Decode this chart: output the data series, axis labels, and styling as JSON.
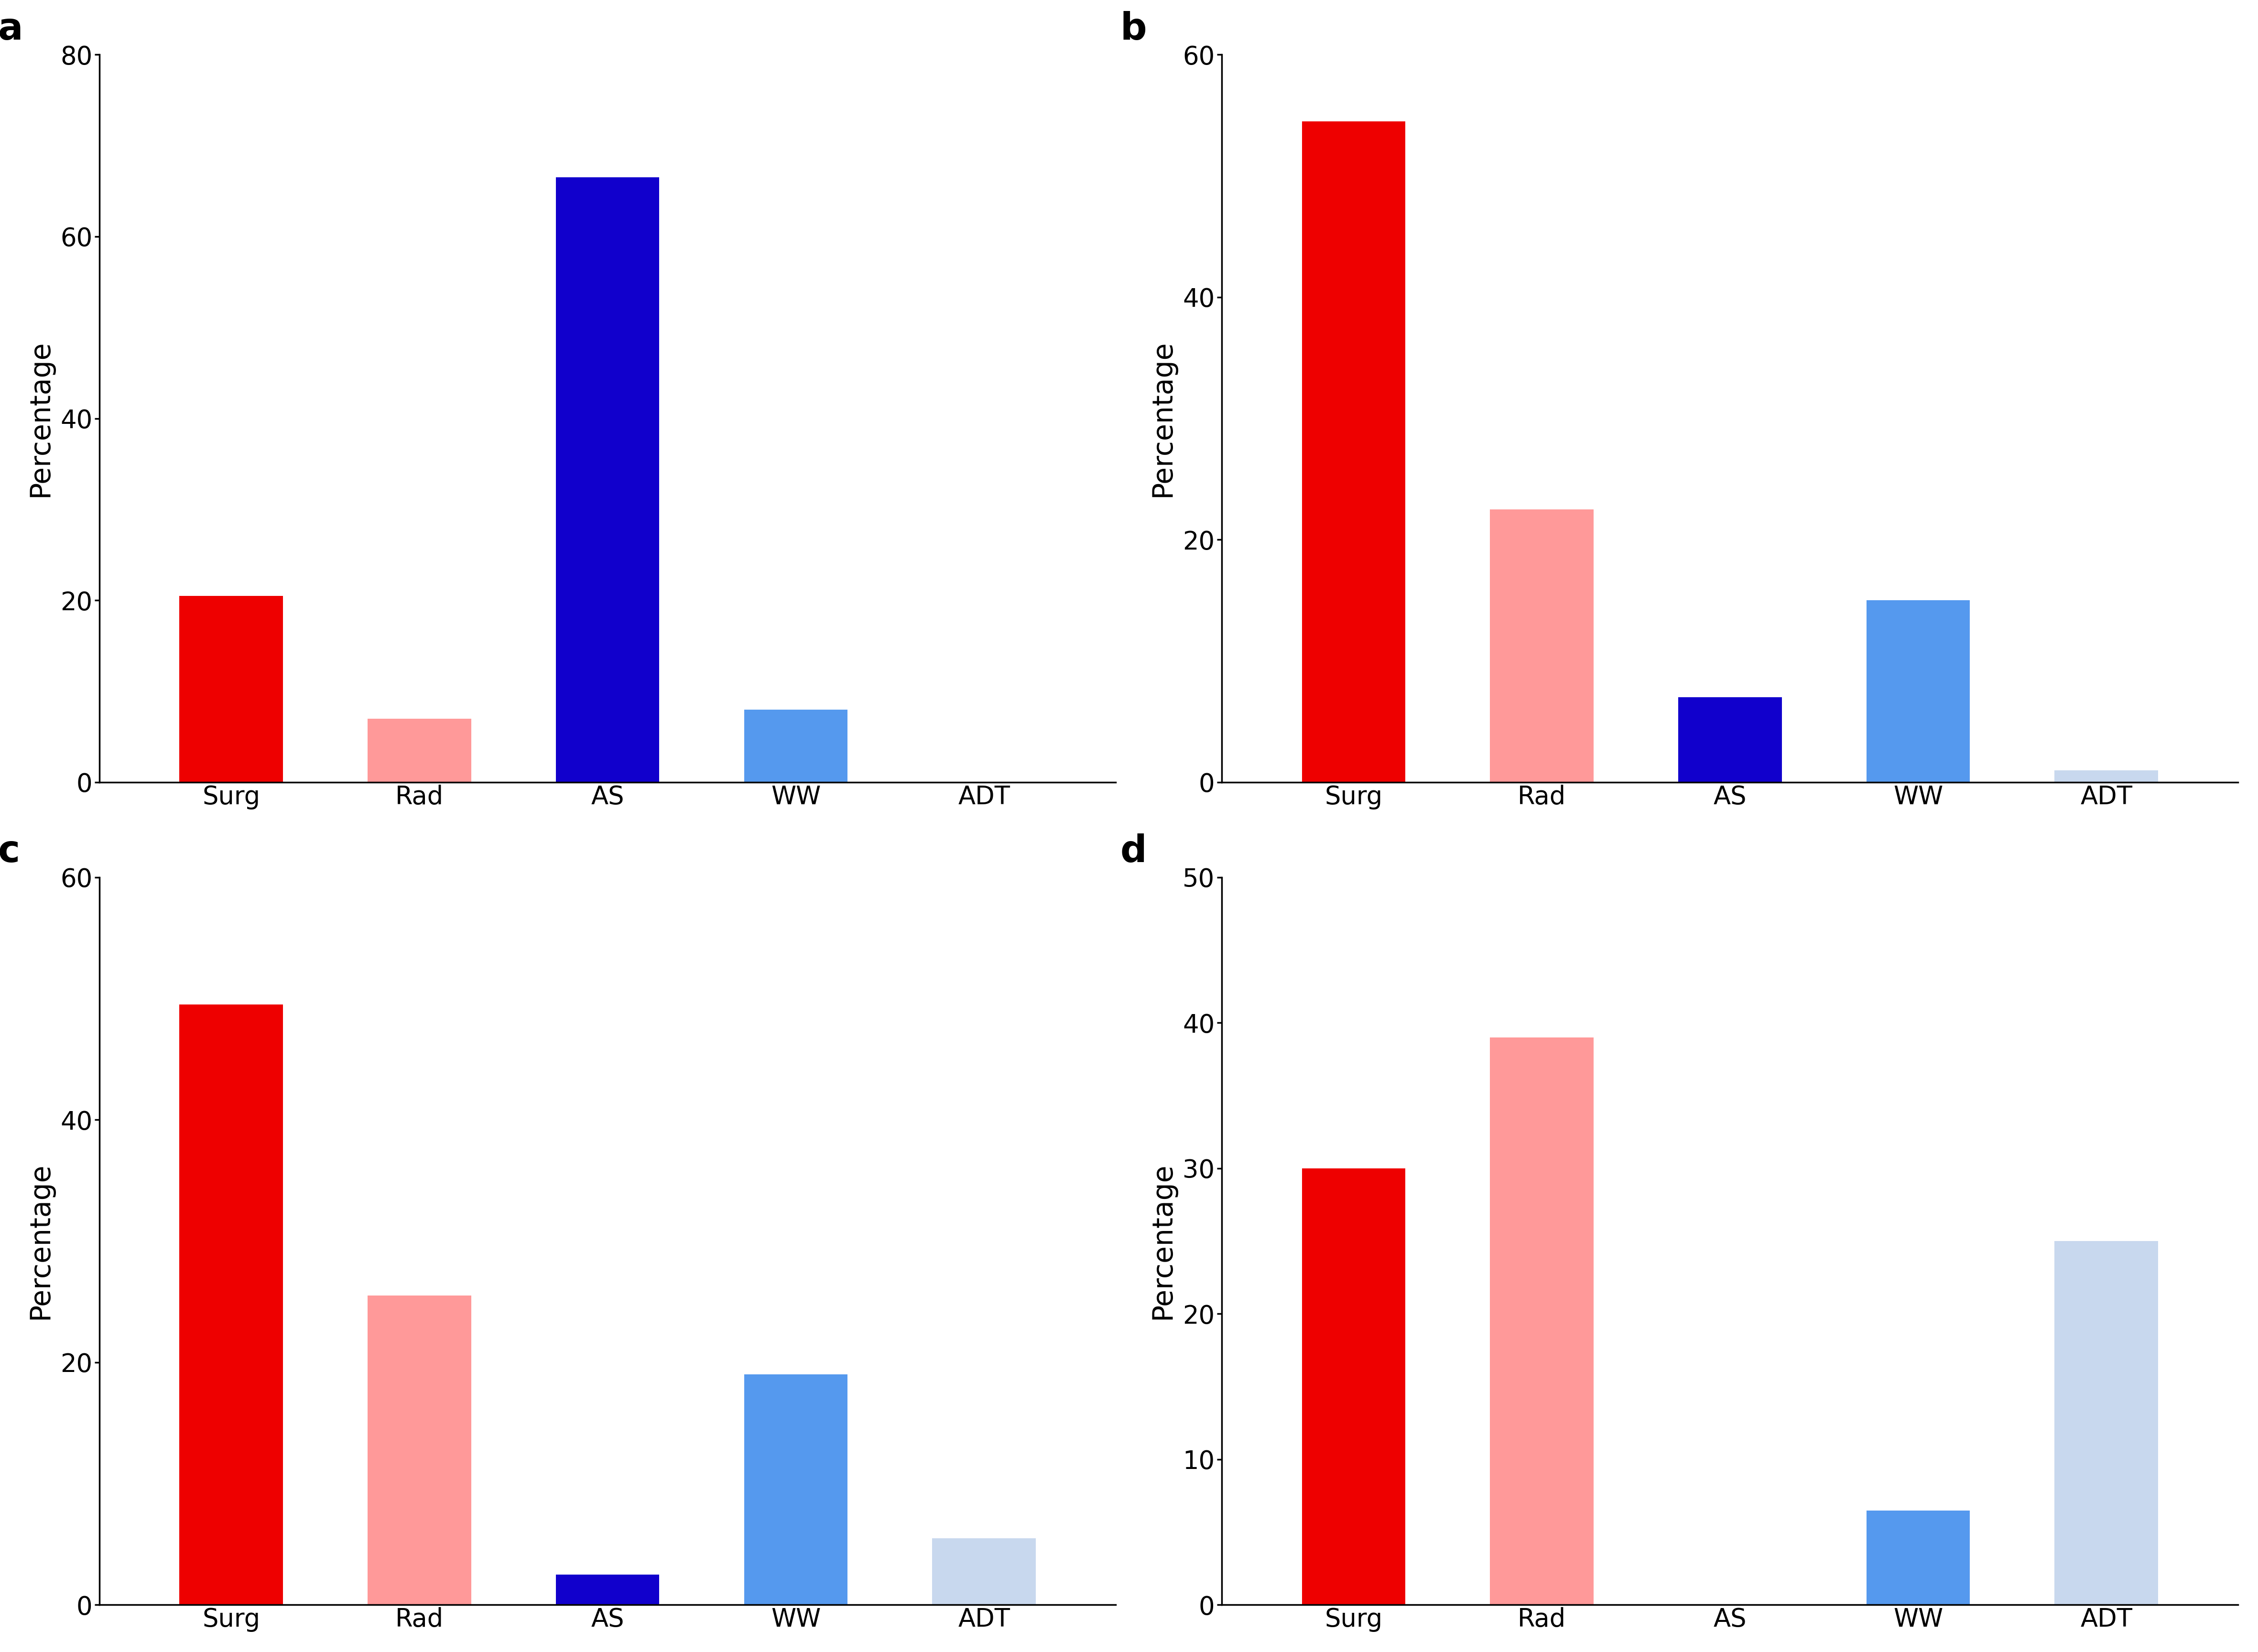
{
  "panels": [
    {
      "label": "a",
      "categories": [
        "Surg",
        "Rad",
        "AS",
        "WW",
        "ADT"
      ],
      "values": [
        20.5,
        7.0,
        66.5,
        8.0,
        0.0
      ],
      "colors": [
        "#EE0000",
        "#FF9999",
        "#1100CC",
        "#5599EE",
        "#C8D8EE"
      ],
      "ylim": [
        0,
        80
      ],
      "yticks": [
        0,
        20,
        40,
        60,
        80
      ]
    },
    {
      "label": "b",
      "categories": [
        "Surg",
        "Rad",
        "AS",
        "WW",
        "ADT"
      ],
      "values": [
        54.5,
        22.5,
        7.0,
        15.0,
        1.0
      ],
      "colors": [
        "#EE0000",
        "#FF9999",
        "#1100CC",
        "#5599EE",
        "#C8D8EE"
      ],
      "ylim": [
        0,
        60
      ],
      "yticks": [
        0,
        20,
        40,
        60
      ]
    },
    {
      "label": "c",
      "categories": [
        "Surg",
        "Rad",
        "AS",
        "WW",
        "ADT"
      ],
      "values": [
        49.5,
        25.5,
        2.5,
        19.0,
        5.5
      ],
      "colors": [
        "#EE0000",
        "#FF9999",
        "#1100CC",
        "#5599EE",
        "#C8D8EE"
      ],
      "ylim": [
        0,
        60
      ],
      "yticks": [
        0,
        20,
        40,
        60
      ]
    },
    {
      "label": "d",
      "categories": [
        "Surg",
        "Rad",
        "AS",
        "WW",
        "ADT"
      ],
      "values": [
        30.0,
        39.0,
        0.0,
        6.5,
        25.0
      ],
      "colors": [
        "#EE0000",
        "#FF9999",
        "#1100CC",
        "#5599EE",
        "#C8D8EE"
      ],
      "ylim": [
        0,
        50
      ],
      "yticks": [
        0,
        10,
        20,
        30,
        40,
        50
      ]
    }
  ],
  "ylabel": "Percentage",
  "background_color": "#FFFFFF",
  "label_fontsize": 56,
  "axis_fontsize": 42,
  "tick_fontsize": 38,
  "bar_width": 0.55
}
